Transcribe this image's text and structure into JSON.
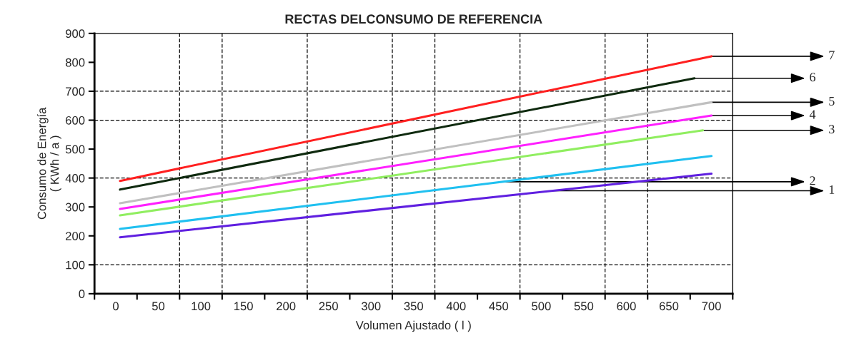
{
  "chart_data": {
    "type": "line",
    "title": "RECTAS DELCONSUMO DE REFERENCIA",
    "xlabel": "Volumen Ajustado ( l )",
    "ylabel": "Consumo de Energía\n( KWh / a )",
    "xlim": [
      -25,
      725
    ],
    "xticks": [
      {
        "value": -25,
        "label": null
      },
      0,
      {
        "value": 25,
        "label": null
      },
      50,
      {
        "value": 75,
        "label": null
      },
      100,
      {
        "value": 125,
        "label": null
      },
      150,
      {
        "value": 175,
        "label": null
      },
      200,
      {
        "value": 225,
        "label": null
      },
      250,
      {
        "value": 275,
        "label": null
      },
      300,
      {
        "value": 325,
        "label": null
      },
      350,
      {
        "value": 375,
        "label": null
      },
      400,
      {
        "value": 425,
        "label": null
      },
      450,
      {
        "value": 475,
        "label": null
      },
      500,
      {
        "value": 525,
        "label": null
      },
      550,
      {
        "value": 575,
        "label": null
      },
      600,
      {
        "value": 625,
        "label": null
      },
      650,
      {
        "value": 675,
        "label": null
      },
      700,
      {
        "value": 725,
        "label": null
      }
    ],
    "ylim": [
      0,
      900
    ],
    "yticks": [
      0,
      100,
      200,
      300,
      400,
      500,
      600,
      700,
      800,
      900
    ],
    "grid": false,
    "legend": false,
    "marker": "none",
    "line_style": "solid",
    "ref_lines": [
      {
        "axis": "x",
        "value": 75,
        "color": "#000000",
        "line_style": "dashed"
      },
      {
        "axis": "x",
        "value": 125,
        "color": "#000000",
        "line_style": "dashed"
      },
      {
        "axis": "x",
        "value": 225,
        "color": "#000000",
        "line_style": "dashed"
      },
      {
        "axis": "x",
        "value": 325,
        "color": "#000000",
        "line_style": "dashed"
      },
      {
        "axis": "x",
        "value": 375,
        "color": "#000000",
        "line_style": "dashed"
      },
      {
        "axis": "x",
        "value": 475,
        "color": "#000000",
        "line_style": "dashed"
      },
      {
        "axis": "x",
        "value": 575,
        "color": "#000000",
        "line_style": "dashed"
      },
      {
        "axis": "x",
        "value": 625,
        "color": "#000000",
        "line_style": "dashed"
      },
      {
        "axis": "y",
        "value": 100,
        "color": "#000000",
        "line_style": "dashed"
      },
      {
        "axis": "y",
        "value": 400,
        "color": "#000000",
        "line_style": "dashed"
      },
      {
        "axis": "y",
        "value": 600,
        "color": "#000000",
        "line_style": "dashed"
      },
      {
        "axis": "y",
        "value": 700,
        "color": "#000000",
        "line_style": "dashed"
      }
    ],
    "series": [
      {
        "color": "#ff2020",
        "x": [
          5,
          700
        ],
        "values": [
          390,
          821
        ]
      },
      {
        "color": "#0f2a0f",
        "x": [
          5,
          680
        ],
        "values": [
          360,
          745
        ]
      },
      {
        "color": "#c0c0c0",
        "x": [
          5,
          700
        ],
        "values": [
          313,
          662
        ]
      },
      {
        "color": "#ff20ff",
        "x": [
          5,
          700
        ],
        "values": [
          293,
          616
        ]
      },
      {
        "color": "#90ee60",
        "x": [
          5,
          690
        ],
        "values": [
          271,
          565
        ]
      },
      {
        "color": "#20c0f0",
        "x": [
          5,
          700
        ],
        "values": [
          224,
          476
        ]
      },
      {
        "color": "#6020e0",
        "x": [
          5,
          700
        ],
        "values": [
          195,
          415
        ]
      }
    ],
    "annotations": [
      {
        "text": "7",
        "x": 700,
        "y": 821
      },
      {
        "text": "6",
        "x": 680,
        "y": 745
      },
      {
        "text": "5",
        "x": 700,
        "y": 662
      },
      {
        "text": "4",
        "x": 700,
        "y": 616
      },
      {
        "text": "3",
        "x": 690,
        "y": 565
      },
      {
        "text": "2",
        "x": 455,
        "y": 387
      },
      {
        "text": "1",
        "x": 514,
        "y": 356
      }
    ]
  }
}
